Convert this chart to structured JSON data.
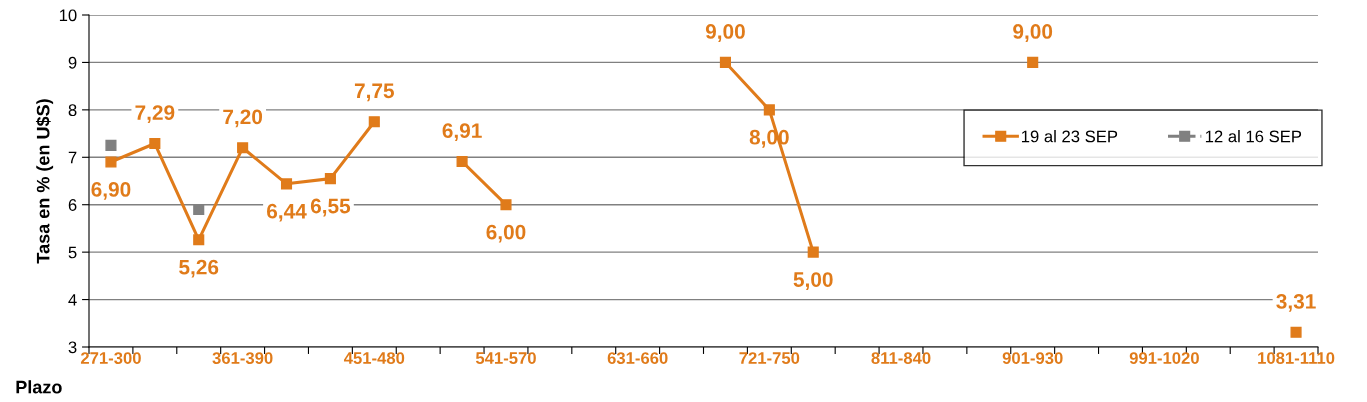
{
  "chart_data": {
    "type": "line",
    "xlabel": "Plazo",
    "ylabel": "Tasa en % (en U$S)",
    "categories": [
      "271-300",
      null,
      null,
      "361-390",
      null,
      null,
      "451-480",
      null,
      null,
      "541-570",
      null,
      null,
      "631-660",
      null,
      null,
      "721-750",
      null,
      null,
      "811-840",
      null,
      null,
      "901-930",
      null,
      null,
      "991-1020",
      null,
      null,
      "1081-1110"
    ],
    "series": [
      {
        "name": "19 al 23 SEP",
        "color": "#e07b1a",
        "line_style": "solid",
        "values": [
          6.9,
          7.29,
          5.26,
          7.2,
          6.44,
          6.55,
          7.75,
          null,
          6.91,
          6.0,
          null,
          null,
          null,
          null,
          9.0,
          8.0,
          5.0,
          null,
          null,
          null,
          null,
          9.0,
          null,
          null,
          null,
          null,
          null,
          3.31
        ],
        "value_labels": [
          "6,90",
          "7,29",
          "5,26",
          "7,20",
          "6,44",
          "6,55",
          "7,75",
          null,
          "6,91",
          "6,00",
          null,
          null,
          null,
          null,
          "9,00",
          "8,00",
          "5,00",
          null,
          null,
          null,
          null,
          "9,00",
          null,
          null,
          null,
          null,
          null,
          "3,31"
        ]
      },
      {
        "name": "12 al 16 SEP",
        "color": "#808080",
        "line_style": "dashed",
        "values": [
          7.25,
          null,
          5.9,
          null,
          null,
          null,
          null,
          null,
          null,
          null,
          null,
          null,
          null,
          null,
          null,
          null,
          null,
          null,
          null,
          null,
          null,
          null,
          null,
          null,
          null,
          null,
          null,
          null
        ]
      }
    ],
    "ylim": [
      3,
      10
    ],
    "yticks": [
      3,
      4,
      5,
      6,
      7,
      8,
      9,
      10
    ],
    "grid": "y",
    "marker": "square",
    "legend": "right"
  }
}
